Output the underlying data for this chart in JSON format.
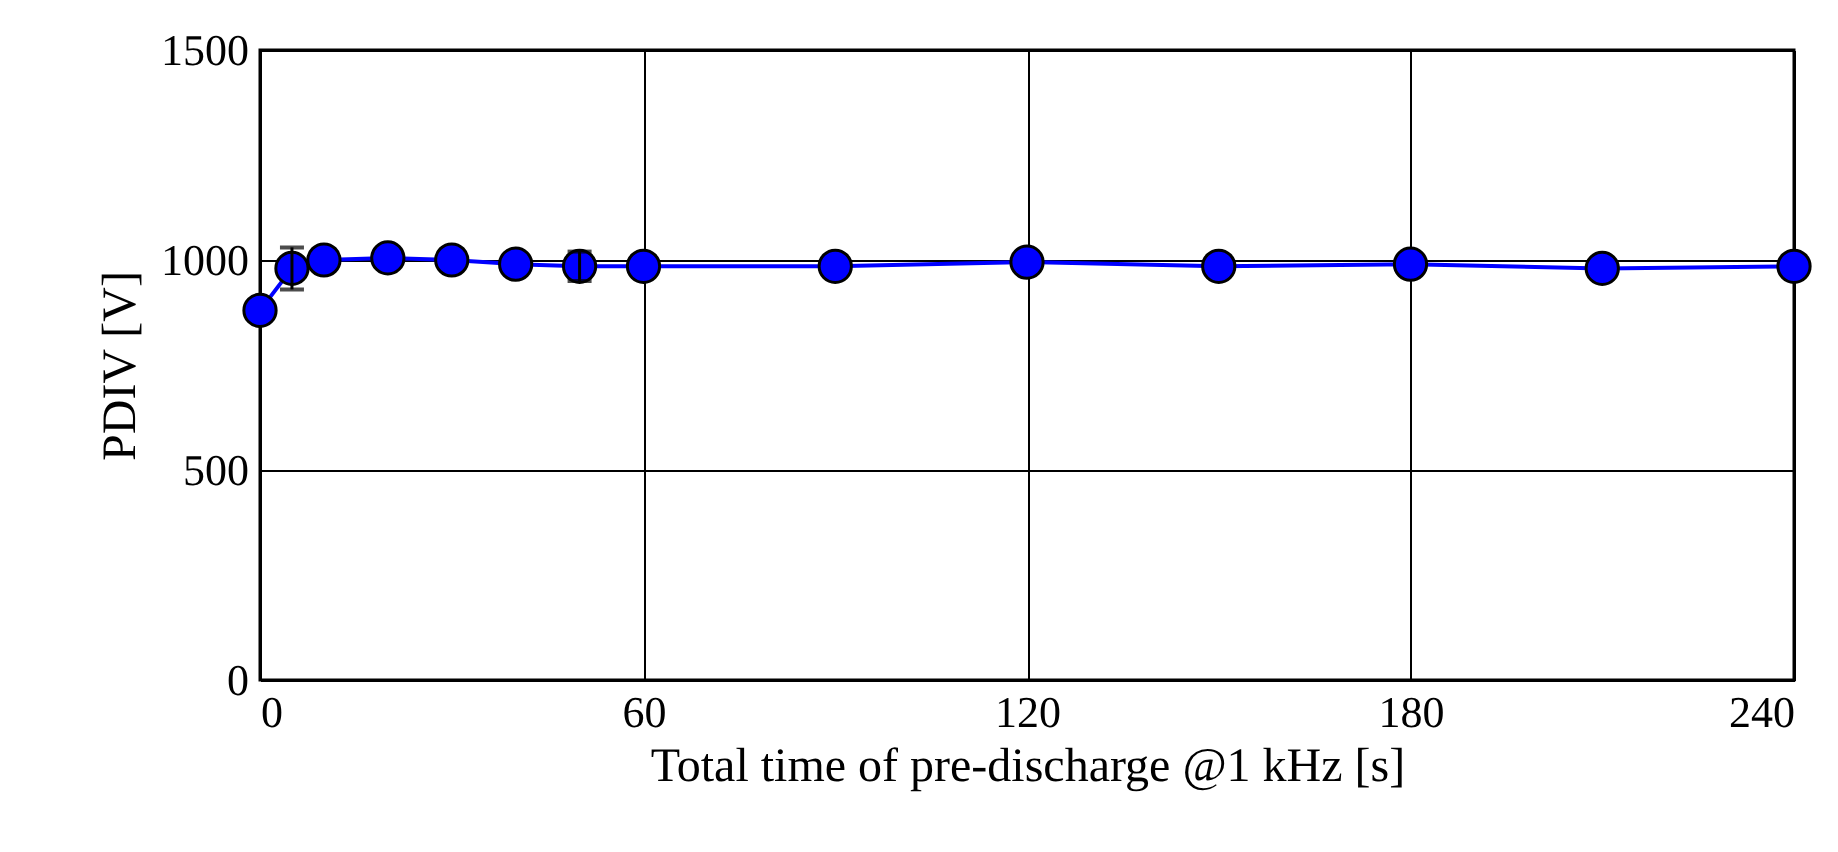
{
  "chart_data": {
    "type": "line",
    "xlabel": "Total time of pre-discharge @1 kHz [s]",
    "ylabel": "PDIV [V]",
    "x": [
      0,
      5,
      10,
      20,
      30,
      40,
      50,
      60,
      90,
      120,
      150,
      180,
      210,
      240
    ],
    "series": [
      {
        "color": "#0000ff",
        "values": [
          880,
          980,
          1000,
          1005,
          1000,
          990,
          985,
          985,
          985,
          995,
          985,
          990,
          980,
          985
        ],
        "errors": [
          null,
          50,
          null,
          null,
          null,
          null,
          35,
          null,
          null,
          null,
          null,
          null,
          null,
          null
        ]
      }
    ],
    "xlim": [
      0,
      240
    ],
    "xticks": [
      0,
      60,
      120,
      180,
      240
    ],
    "ylim": [
      0,
      1500
    ],
    "yticks": [
      0,
      500,
      1000,
      1500
    ],
    "grid": true,
    "marker": "circle",
    "line_style": "solid"
  }
}
